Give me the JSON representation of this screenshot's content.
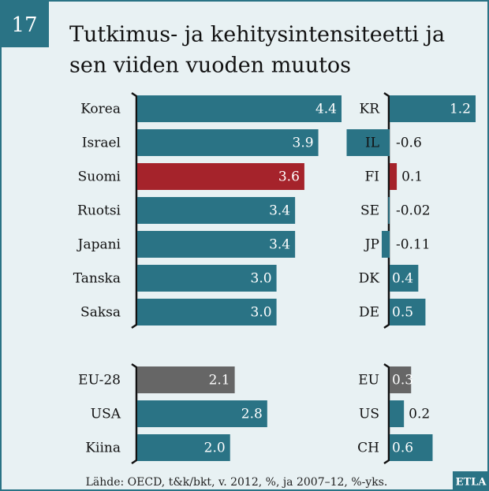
{
  "figure": {
    "number": "17",
    "title": [
      "Tutkimus- ja kehitysintensiteetti ja",
      "sen viiden vuoden muutos"
    ],
    "source": "Lähde: OECD, t&k/bkt, v. 2012, %, ja 2007–12, %-yks.",
    "logo": "ETLA"
  },
  "chart_data": [
    {
      "type": "bar",
      "orientation": "horizontal",
      "categories": [
        "Korea",
        "Israel",
        "Suomi",
        "Ruotsi",
        "Japani",
        "Tanska",
        "Saksa",
        null,
        "EU-28",
        "USA",
        "Kiina"
      ],
      "values": [
        4.4,
        3.9,
        3.6,
        3.4,
        3.4,
        3.0,
        3.0,
        null,
        2.1,
        2.8,
        2.0
      ],
      "value_labels": [
        "4.4",
        "3.9",
        "3.6",
        "3.4",
        "3.4",
        "3.0",
        "3.0",
        null,
        "2.1",
        "2.8",
        "2.0"
      ],
      "colors": [
        "#2a7385",
        "#2a7385",
        "#a5232b",
        "#2a7385",
        "#2a7385",
        "#2a7385",
        "#2a7385",
        null,
        "#666666",
        "#2a7385",
        "#2a7385"
      ]
    },
    {
      "type": "bar",
      "orientation": "horizontal",
      "categories": [
        "KR",
        "IL",
        "FI",
        "SE",
        "JP",
        "DK",
        "DE",
        null,
        "EU",
        "US",
        "CH"
      ],
      "values": [
        1.2,
        -0.6,
        0.1,
        -0.02,
        -0.11,
        0.4,
        0.5,
        null,
        0.3,
        0.2,
        0.6
      ],
      "colors": [
        "#2a7385",
        "#2a7385",
        "#a5232b",
        "#2a7385",
        "#2a7385",
        "#2a7385",
        "#2a7385",
        null,
        "#666666",
        "#2a7385",
        "#2a7385"
      ]
    }
  ]
}
